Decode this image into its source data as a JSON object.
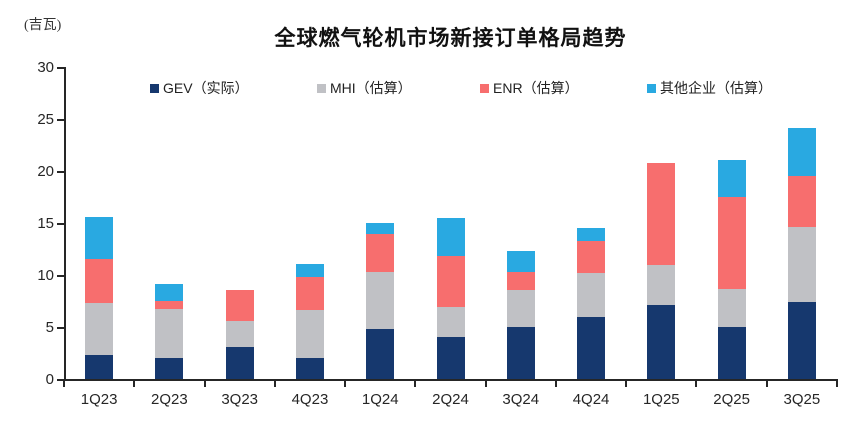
{
  "chart_data": {
    "type": "bar",
    "variant": "stacked",
    "title": "全球燃气轮机市场新接订单格局趋势",
    "unit_label": "(吉瓦)",
    "categories": [
      "1Q23",
      "2Q23",
      "3Q23",
      "4Q23",
      "1Q24",
      "2Q24",
      "3Q24",
      "4Q24",
      "1Q25",
      "2Q25",
      "3Q25"
    ],
    "series": [
      {
        "name": "GEV（实际）",
        "color": "#16386e",
        "values": [
          2.3,
          2.0,
          3.1,
          2.0,
          4.8,
          4.0,
          5.0,
          6.0,
          7.1,
          5.0,
          7.4
        ]
      },
      {
        "name": "MHI（估算）",
        "color": "#c0c1c5",
        "values": [
          5.0,
          4.7,
          2.5,
          4.6,
          5.5,
          2.9,
          3.6,
          4.2,
          3.9,
          3.7,
          7.2
        ]
      },
      {
        "name": "ENR（估算）",
        "color": "#f76e6e",
        "values": [
          4.2,
          0.8,
          3.0,
          3.2,
          3.6,
          4.9,
          1.7,
          3.1,
          9.8,
          8.8,
          4.9
        ]
      },
      {
        "name": "其他企业（估算）",
        "color": "#29a9e1",
        "values": [
          4.1,
          1.6,
          0.0,
          1.3,
          1.1,
          3.7,
          2.0,
          1.2,
          0.0,
          3.6,
          4.6
        ]
      }
    ],
    "totals": [
      15.6,
      9.1,
      8.6,
      11.1,
      15.0,
      15.5,
      12.3,
      14.5,
      20.8,
      21.1,
      24.1
    ],
    "ylim": [
      0,
      30
    ],
    "yticks": [
      0,
      5,
      10,
      15,
      20,
      25,
      30
    ],
    "legend_position": "top",
    "grid": false,
    "axis_color": "#262626",
    "text_color": "#262626",
    "background_color": "#ffffff"
  }
}
